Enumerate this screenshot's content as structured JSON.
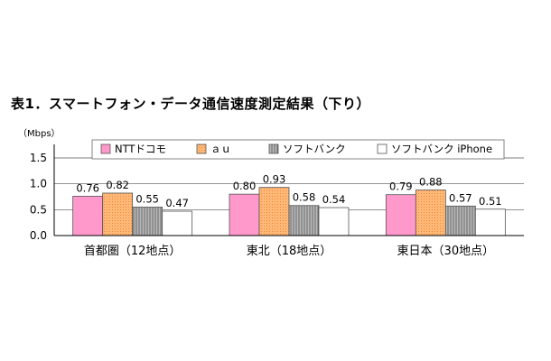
{
  "chart_data": {
    "type": "bar",
    "title": "表1．スマートフォン・データ通信速度測定結果（下り）",
    "ylabel": "（Mbps）",
    "ylim": [
      0,
      1.5
    ],
    "yticks": [
      "0.0",
      "0.5",
      "1.0",
      "1.5"
    ],
    "grid": true,
    "legend_position": "top",
    "categories": [
      "首都圏（12地点）",
      "東北（18地点）",
      "東日本（30地点）"
    ],
    "series": [
      {
        "name": "NTTドコモ",
        "values": [
          0.76,
          0.8,
          0.79
        ],
        "value_labels": [
          "0.76",
          "0.80",
          "0.79"
        ],
        "color": "#FF99CC"
      },
      {
        "name": "ａｕ",
        "values": [
          0.82,
          0.93,
          0.88
        ],
        "value_labels": [
          "0.82",
          "0.93",
          "0.88"
        ],
        "color": "#FFB070"
      },
      {
        "name": "ソフトバンク",
        "values": [
          0.55,
          0.58,
          0.57
        ],
        "value_labels": [
          "0.55",
          "0.58",
          "0.57"
        ],
        "color": "#A0A0A0"
      },
      {
        "name": "ソフトバンク iPhone",
        "values": [
          0.47,
          0.54,
          0.51
        ],
        "value_labels": [
          "0.47",
          "0.54",
          "0.51"
        ],
        "color": "#FFFFFF"
      }
    ]
  }
}
